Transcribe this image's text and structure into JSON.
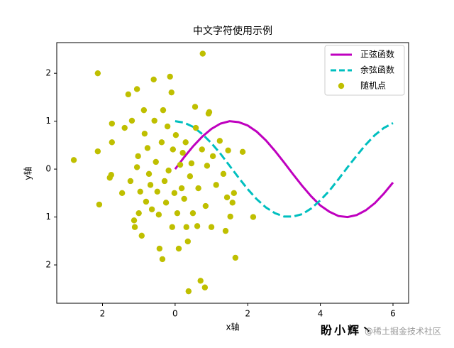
{
  "chart_data": {
    "type": "line",
    "title": "中文字符使用示例",
    "xlabel": "x轴",
    "ylabel": "y轴",
    "xlim": [
      -3.26,
      6.43
    ],
    "ylim": [
      -2.8,
      2.64
    ],
    "xticks": [
      {
        "value": -2,
        "label": "2"
      },
      0,
      2,
      4,
      6
    ],
    "yticks": [
      {
        "value": -2,
        "label": "2"
      },
      {
        "value": -1,
        "label": "1"
      },
      0,
      1,
      2
    ],
    "legend": "upper right",
    "series": [
      {
        "name": "正弦函数",
        "type": "line",
        "dash": "solid",
        "color": "#bf00bf",
        "x": [
          0,
          0.25,
          0.5,
          0.75,
          1,
          1.25,
          1.5,
          1.75,
          2,
          2.25,
          2.5,
          2.75,
          3,
          3.25,
          3.5,
          3.75,
          4,
          4.25,
          4.5,
          4.75,
          5,
          5.25,
          5.5,
          5.75,
          6
        ],
        "values": [
          0,
          0.25,
          0.48,
          0.68,
          0.84,
          0.95,
          1.0,
          0.98,
          0.91,
          0.78,
          0.6,
          0.38,
          0.14,
          -0.11,
          -0.35,
          -0.57,
          -0.76,
          -0.89,
          -0.98,
          -1.0,
          -0.96,
          -0.86,
          -0.71,
          -0.51,
          -0.28
        ]
      },
      {
        "name": "余弦函数",
        "type": "line",
        "dash": "dashed",
        "color": "#00bfbf",
        "x": [
          0,
          0.25,
          0.5,
          0.75,
          1,
          1.25,
          1.5,
          1.75,
          2,
          2.25,
          2.5,
          2.75,
          3,
          3.25,
          3.5,
          3.75,
          4,
          4.25,
          4.5,
          4.75,
          5,
          5.25,
          5.5,
          5.75,
          6
        ],
        "values": [
          1,
          0.97,
          0.88,
          0.73,
          0.54,
          0.32,
          0.07,
          -0.18,
          -0.42,
          -0.63,
          -0.8,
          -0.92,
          -0.99,
          -0.99,
          -0.94,
          -0.82,
          -0.65,
          -0.45,
          -0.21,
          0.04,
          0.28,
          0.51,
          0.71,
          0.86,
          0.96
        ]
      },
      {
        "name": "随机点",
        "type": "scatter",
        "color": "#bfbf00",
        "x": [
          -2.79,
          -2.13,
          -2.13,
          -2.09,
          -1.8,
          -1.76,
          -1.74,
          -1.74,
          -1.46,
          -1.39,
          -1.29,
          -1.23,
          -1.19,
          -1.13,
          -1.11,
          -1.05,
          -1.05,
          -1.02,
          -1.0,
          -0.96,
          -0.92,
          -0.86,
          -0.84,
          -0.8,
          -0.76,
          -0.72,
          -0.68,
          -0.64,
          -0.59,
          -0.57,
          -0.53,
          -0.49,
          -0.45,
          -0.43,
          -0.37,
          -0.35,
          -0.33,
          -0.29,
          -0.25,
          -0.21,
          -0.18,
          -0.14,
          -0.1,
          -0.08,
          -0.06,
          -0.02,
          0.02,
          0.06,
          0.1,
          0.14,
          0.18,
          0.21,
          0.25,
          0.29,
          0.31,
          0.35,
          0.37,
          0.41,
          0.45,
          0.49,
          0.55,
          0.57,
          0.61,
          0.64,
          0.7,
          0.74,
          0.76,
          0.82,
          0.84,
          0.88,
          0.92,
          0.94,
          1.0,
          1.04,
          1.13,
          1.23,
          1.33,
          1.39,
          1.43,
          1.46,
          1.52,
          1.58,
          1.62,
          1.66,
          1.86,
          2.15
        ],
        "values": [
          0.19,
          2.0,
          0.37,
          -0.74,
          -0.18,
          -0.12,
          0.56,
          0.95,
          -0.5,
          0.86,
          1.56,
          -0.25,
          1.01,
          -1.07,
          -1.21,
          1.67,
          0.04,
          0.27,
          -0.92,
          -0.47,
          -1.39,
          1.23,
          0.74,
          -0.68,
          0.44,
          -0.1,
          -0.33,
          -0.84,
          1.87,
          1.01,
          0.15,
          -0.47,
          -0.95,
          -1.66,
          0.56,
          -1.88,
          1.23,
          -0.25,
          -0.7,
          0.89,
          -0.03,
          1.93,
          1.6,
          -1.21,
          0.41,
          -0.5,
          0.71,
          -0.92,
          -1.66,
          0.09,
          -0.4,
          0.34,
          -0.62,
          0.56,
          -1.21,
          -1.51,
          -2.55,
          -0.15,
          0.12,
          -0.92,
          1.3,
          0.86,
          -1.19,
          -0.4,
          -2.33,
          0.41,
          2.41,
          -2.47,
          -0.77,
          0.07,
          1.16,
          1.19,
          -1.21,
          0.27,
          -0.33,
          0.59,
          -0.1,
          -1.29,
          -0.59,
          0.39,
          -0.99,
          -0.7,
          -0.5,
          -1.85,
          0.36,
          -1.0
        ]
      }
    ],
    "watermarks": [
      "盼小辉丶",
      "@稀土掘金技术社区"
    ]
  }
}
